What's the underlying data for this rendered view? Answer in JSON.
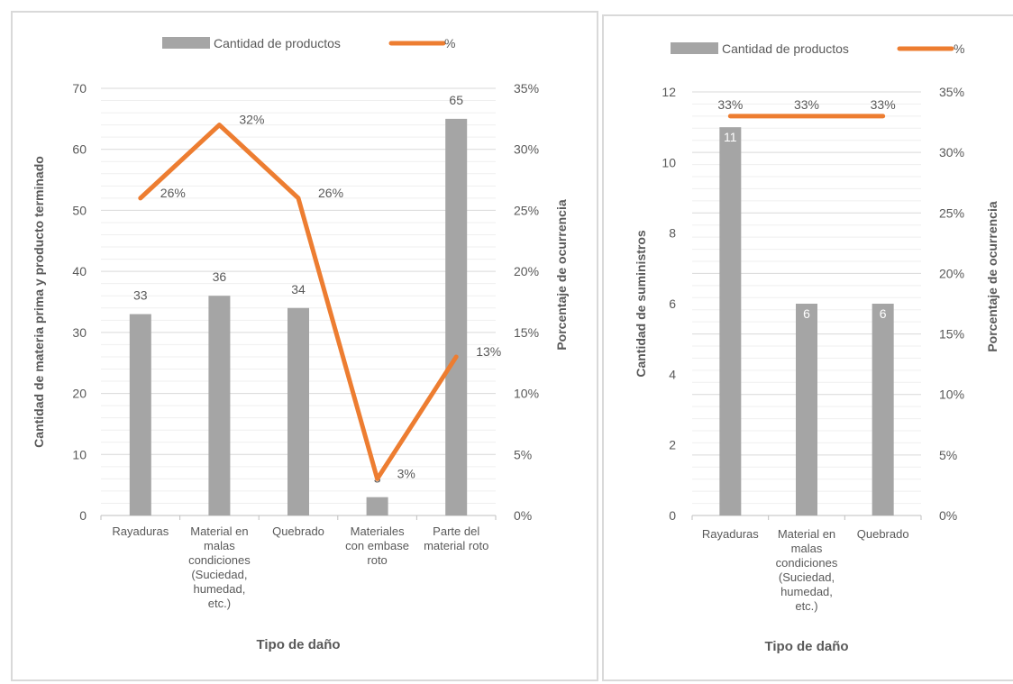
{
  "chart_data": [
    {
      "type": "bar",
      "categories": [
        "Rayaduras",
        "Material en malas condiciones (Suciedad, humedad, etc.)",
        "Quebrado",
        "Materiales con embase roto",
        "Parte del material roto"
      ],
      "category_lines": [
        [
          "Rayaduras"
        ],
        [
          "Material en",
          "malas",
          "condiciones",
          "(Suciedad,",
          "humedad,",
          "etc.)"
        ],
        [
          "Quebrado"
        ],
        [
          "Materiales",
          "con embase",
          "roto"
        ],
        [
          "Parte del",
          "material roto"
        ]
      ],
      "series": [
        {
          "name": "Cantidad de productos",
          "type": "bar",
          "axis": "left",
          "values": [
            33,
            36,
            34,
            3,
            65
          ],
          "labels": [
            "33",
            "36",
            "34",
            "3",
            "65"
          ],
          "color": "#a5a5a5"
        },
        {
          "name": "%",
          "type": "line",
          "axis": "right",
          "values": [
            26,
            32,
            26,
            3,
            13
          ],
          "labels": [
            "26%",
            "32%",
            "26%",
            "3%",
            "13%"
          ],
          "color": "#ed7d31"
        }
      ],
      "xlabel": "Tipo de daño",
      "ylabel": "Cantidad de materia prima y producto terminado",
      "y2label": "Porcentaje de ocurrencia",
      "ylim": [
        0,
        70
      ],
      "y_ticks": [
        "0",
        "10",
        "20",
        "30",
        "40",
        "50",
        "60",
        "70"
      ],
      "y2lim": [
        0,
        35
      ],
      "y2_ticks": [
        "0%",
        "5%",
        "10%",
        "15%",
        "20%",
        "25%",
        "30%",
        "35%"
      ],
      "legend": "top",
      "grid": true
    },
    {
      "type": "bar",
      "categories": [
        "Rayaduras",
        "Material en malas condiciones (Suciedad, humedad, etc.)",
        "Quebrado"
      ],
      "category_lines": [
        [
          "Rayaduras"
        ],
        [
          "Material en",
          "malas",
          "condiciones",
          "(Suciedad,",
          "humedad,",
          "etc.)"
        ],
        [
          "Quebrado"
        ]
      ],
      "series": [
        {
          "name": "Cantidad de productos",
          "type": "bar",
          "axis": "left",
          "values": [
            11,
            6,
            6
          ],
          "labels": [
            "11",
            "6",
            "6"
          ],
          "color": "#a5a5a5"
        },
        {
          "name": "%",
          "type": "line",
          "axis": "right",
          "values": [
            33,
            33,
            33
          ],
          "labels": [
            "33%",
            "33%",
            "33%"
          ],
          "color": "#ed7d31"
        }
      ],
      "xlabel": "Tipo de daño",
      "ylabel": "Cantidad de suministros",
      "y2label": "Porcentaje de ocurrencia",
      "ylim": [
        0,
        12
      ],
      "y_ticks": [
        "0",
        "2",
        "4",
        "6",
        "8",
        "10",
        "12"
      ],
      "y2lim": [
        0,
        35
      ],
      "y2_ticks": [
        "0%",
        "5%",
        "10%",
        "15%",
        "20%",
        "25%",
        "30%",
        "35%"
      ],
      "legend": "top",
      "grid": true
    }
  ]
}
